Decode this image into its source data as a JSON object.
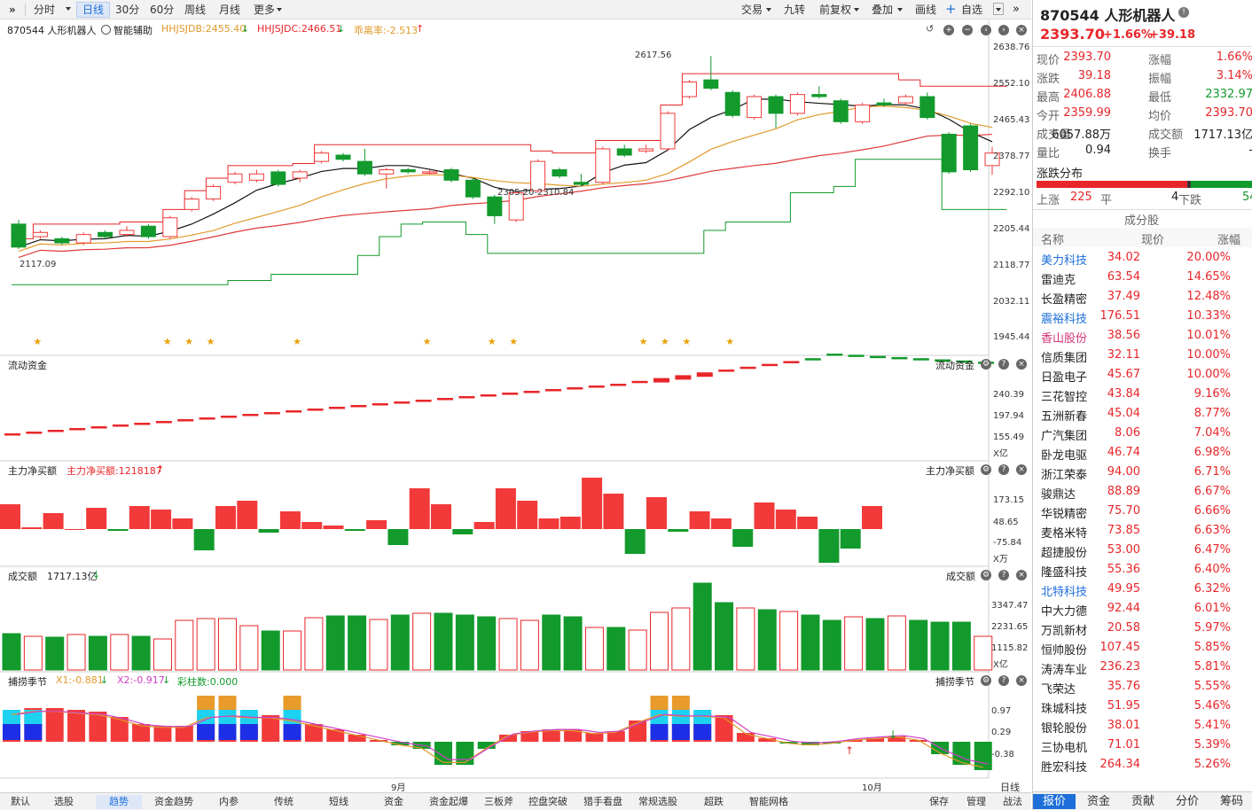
{
  "toolbar": {
    "expand": "»",
    "periods": [
      "分时",
      "日线",
      "30分",
      "60分",
      "周线",
      "月线",
      "更多"
    ],
    "active_period": "日线",
    "right_buttons": [
      "交易",
      "九转",
      "前复权",
      "叠加",
      "画线",
      "自选"
    ]
  },
  "header": {
    "name": "870544 人形机器人",
    "indicator": "智能辅助",
    "hhjsjdb": "HHJSJDB:2455.40",
    "hhjsjdc": "HHJSJDC:2466.51",
    "deviation": "乖离率:-2.513"
  },
  "main_chart": {
    "y_ticks": [
      "2638.76",
      "2552.10",
      "2465.43",
      "2378.77",
      "2292.10",
      "2205.44",
      "2118.77",
      "2032.11",
      "1945.44"
    ],
    "annotations": {
      "high": "2617.56",
      "low": "2117.09",
      "range": "2305.20-2310.84"
    }
  },
  "panels": {
    "liquid": {
      "title": "流动资金",
      "title_right": "流动资金",
      "ticks": [
        "240.39",
        "197.94",
        "155.49"
      ],
      "unit": "X亿"
    },
    "main_net": {
      "title": "主力净买额",
      "value": "主力净买额:1218187",
      "title_right": "主力净买额",
      "ticks": [
        "173.15",
        "48.65",
        "-75.84"
      ],
      "unit": "X万"
    },
    "turnover": {
      "title": "成交额",
      "value": "1717.13亿",
      "title_right": "成交额",
      "ticks": [
        "3347.47",
        "2231.65",
        "1115.82"
      ],
      "unit": "X亿"
    },
    "season": {
      "title": "捕捞季节",
      "x1": "X1:-0.881",
      "x2": "X2:-0.917",
      "bars": "彩柱数:0.000",
      "title_right": "捕捞季节",
      "ticks": [
        "0.97",
        "0.29",
        "-0.38"
      ]
    }
  },
  "xaxis": {
    "months": [
      "9月",
      "10月"
    ],
    "period_label": "日线"
  },
  "bottom_tabs": [
    "默认",
    "选股",
    "趋势",
    "资金趋势",
    "内参",
    "传统",
    "短线",
    "资金",
    "资金起爆",
    "三板斧",
    "控盘突破",
    "猎手看盘",
    "常规选股",
    "超跌",
    "智能网格"
  ],
  "bottom_active": "趋势",
  "bottom_right": [
    "保存",
    "管理",
    "战法"
  ],
  "quote": {
    "code_name": "870544 人形机器人",
    "price": "2393.70",
    "pct": "+1.66%",
    "chg": "+39.18",
    "rows": [
      [
        "现价",
        "2393.70",
        "涨幅",
        "1.66%"
      ],
      [
        "涨跌",
        "39.18",
        "振幅",
        "3.14%"
      ],
      [
        "最高",
        "2406.88",
        "最低",
        "2332.97"
      ],
      [
        "今开",
        "2359.99",
        "均价",
        "2393.70"
      ],
      [
        "成交量",
        "6057.88万",
        "成交额",
        "1717.13亿"
      ],
      [
        "量比",
        "0.94",
        "换手",
        "-"
      ]
    ],
    "dist_title": "涨跌分布",
    "up_label": "上涨",
    "up": "225",
    "flat_label": "平",
    "flat": "4",
    "down_label": "下跌",
    "down": "54"
  },
  "constituents": {
    "title": "成分股",
    "headers": [
      "名称",
      "现价",
      "涨幅"
    ],
    "rows": [
      [
        "美力科技",
        "34.02",
        "20.00%",
        "blue"
      ],
      [
        "雷迪克",
        "63.54",
        "14.65%",
        ""
      ],
      [
        "长盈精密",
        "37.49",
        "12.48%",
        ""
      ],
      [
        "震裕科技",
        "176.51",
        "10.33%",
        "blue"
      ],
      [
        "香山股份",
        "38.56",
        "10.01%",
        "pink"
      ],
      [
        "信质集团",
        "32.11",
        "10.00%",
        ""
      ],
      [
        "日盈电子",
        "45.67",
        "10.00%",
        ""
      ],
      [
        "三花智控",
        "43.84",
        "9.16%",
        ""
      ],
      [
        "五洲新春",
        "45.04",
        "8.77%",
        ""
      ],
      [
        "广汽集团",
        "8.06",
        "7.04%",
        ""
      ],
      [
        "卧龙电驱",
        "46.74",
        "6.98%",
        ""
      ],
      [
        "浙江荣泰",
        "94.00",
        "6.71%",
        ""
      ],
      [
        "骏鼎达",
        "88.89",
        "6.67%",
        ""
      ],
      [
        "华锐精密",
        "75.70",
        "6.66%",
        ""
      ],
      [
        "麦格米特",
        "73.85",
        "6.63%",
        ""
      ],
      [
        "超捷股份",
        "53.00",
        "6.47%",
        ""
      ],
      [
        "隆盛科技",
        "55.36",
        "6.40%",
        ""
      ],
      [
        "北特科技",
        "49.95",
        "6.32%",
        "blue"
      ],
      [
        "中大力德",
        "92.44",
        "6.01%",
        ""
      ],
      [
        "万凯新材",
        "20.58",
        "5.97%",
        ""
      ],
      [
        "恒帅股份",
        "107.45",
        "5.85%",
        ""
      ],
      [
        "涛涛车业",
        "236.23",
        "5.81%",
        ""
      ],
      [
        "飞荣达",
        "35.76",
        "5.55%",
        ""
      ],
      [
        "珠城科技",
        "51.95",
        "5.46%",
        ""
      ],
      [
        "银轮股份",
        "38.01",
        "5.41%",
        ""
      ],
      [
        "三协电机",
        "71.01",
        "5.39%",
        ""
      ],
      [
        "胜宏科技",
        "264.34",
        "5.26%",
        ""
      ]
    ]
  },
  "right_tabs": [
    "报价",
    "资金",
    "贡献",
    "分价",
    "筹码"
  ],
  "right_tab_active": "报价",
  "chart_data": {
    "type": "candlestick",
    "ylim": [
      1945.44,
      2638.76
    ],
    "candles": [
      [
        2215,
        2160,
        2225,
        2155
      ],
      [
        2185,
        2195,
        2200,
        2180
      ],
      [
        2180,
        2170,
        2185,
        2165
      ],
      [
        2170,
        2190,
        2195,
        2165
      ],
      [
        2195,
        2185,
        2200,
        2180
      ],
      [
        2190,
        2200,
        2210,
        2185
      ],
      [
        2210,
        2185,
        2215,
        2180
      ],
      [
        2185,
        2230,
        2235,
        2180
      ],
      [
        2250,
        2275,
        2280,
        2245
      ],
      [
        2275,
        2305,
        2310,
        2270
      ],
      [
        2315,
        2335,
        2340,
        2310
      ],
      [
        2320,
        2335,
        2345,
        2315
      ],
      [
        2340,
        2310,
        2345,
        2305
      ],
      [
        2325,
        2340,
        2345,
        2315
      ],
      [
        2365,
        2385,
        2390,
        2360
      ],
      [
        2380,
        2370,
        2385,
        2365
      ],
      [
        2365,
        2335,
        2395,
        2330
      ],
      [
        2335,
        2345,
        2350,
        2300
      ],
      [
        2345,
        2340,
        2350,
        2335
      ],
      [
        2340,
        2340,
        2345,
        2335
      ],
      [
        2345,
        2320,
        2350,
        2315
      ],
      [
        2320,
        2280,
        2325,
        2275
      ],
      [
        2280,
        2235,
        2285,
        2215
      ],
      [
        2225,
        2290,
        2295,
        2220
      ],
      [
        2295,
        2365,
        2370,
        2290
      ],
      [
        2345,
        2330,
        2350,
        2325
      ],
      [
        2315,
        2310,
        2335,
        2305
      ],
      [
        2315,
        2395,
        2400,
        2310
      ],
      [
        2395,
        2380,
        2405,
        2375
      ],
      [
        2390,
        2395,
        2405,
        2385
      ],
      [
        2395,
        2480,
        2485,
        2390
      ],
      [
        2520,
        2555,
        2560,
        2515
      ],
      [
        2560,
        2540,
        2617,
        2535
      ],
      [
        2530,
        2475,
        2535,
        2470
      ],
      [
        2470,
        2520,
        2525,
        2465
      ],
      [
        2520,
        2480,
        2525,
        2445
      ],
      [
        2480,
        2525,
        2530,
        2475
      ],
      [
        2525,
        2520,
        2545,
        2515
      ],
      [
        2510,
        2460,
        2515,
        2455
      ],
      [
        2460,
        2500,
        2505,
        2455
      ],
      [
        2505,
        2500,
        2515,
        2495
      ],
      [
        2505,
        2520,
        2525,
        2500
      ],
      [
        2520,
        2470,
        2530,
        2465
      ],
      [
        2430,
        2340,
        2435,
        2335
      ],
      [
        2450,
        2345,
        2455,
        2340
      ],
      [
        2355,
        2385,
        2400,
        2333
      ]
    ]
  }
}
